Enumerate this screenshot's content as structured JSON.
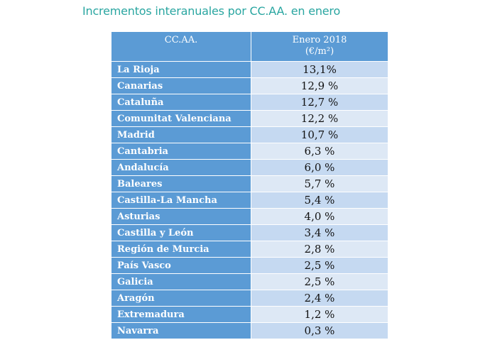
{
  "title": "Incrementos interanuales por CC.AA. en enero",
  "table": {
    "headers": [
      "CC.AA.",
      "Enero 2018",
      "(€/m²)"
    ],
    "rows": [
      {
        "region": "La Rioja",
        "value": "13,1%"
      },
      {
        "region": "Canarias",
        "value": "12,9 %"
      },
      {
        "region": "Cataluña",
        "value": "12,7 %"
      },
      {
        "region": "Comunitat Valenciana",
        "value": "12,2 %"
      },
      {
        "region": "Madrid",
        "value": "10,7 %"
      },
      {
        "region": "Cantabria",
        "value": "6,3 %"
      },
      {
        "region": "Andalucía",
        "value": "6,0 %"
      },
      {
        "region": "Baleares",
        "value": "5,7 %"
      },
      {
        "region": "Castilla-La Mancha",
        "value": "5,4 %"
      },
      {
        "region": "Asturias",
        "value": "4,0 %"
      },
      {
        "region": "Castilla y León",
        "value": "3,4 %"
      },
      {
        "region": "Región de Murcia",
        "value": "2,8 %"
      },
      {
        "region": "País Vasco",
        "value": "2,5 %"
      },
      {
        "region": "Galicia",
        "value": "2,5 %"
      },
      {
        "region": "Aragón",
        "value": "2,4 %"
      },
      {
        "region": "Extremadura",
        "value": "1,2 %"
      },
      {
        "region": "Navarra",
        "value": "0,3 %"
      }
    ]
  },
  "colors": {
    "title": "#2aa6a1",
    "header_bg": "#5b9bd5",
    "value_bg_odd": "#c5d9f1",
    "value_bg_even": "#dde8f5"
  }
}
